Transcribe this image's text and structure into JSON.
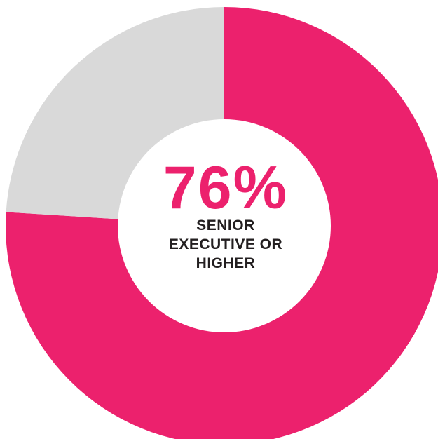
{
  "colors": {
    "primary": "#EC216D",
    "remainder": "#D9D9D9",
    "text": "#231F20"
  },
  "chart_data": {
    "type": "pie",
    "donut": true,
    "slices": [
      {
        "label": "SENIOR EXECUTIVE OR HIGHER",
        "value": 76,
        "color": "#EC216D"
      },
      {
        "label": "",
        "value": 24,
        "color": "#D9D9D9"
      }
    ],
    "center_value": "76%",
    "center_lines": [
      "SENIOR",
      "EXECUTIVE OR",
      "HIGHER"
    ]
  }
}
